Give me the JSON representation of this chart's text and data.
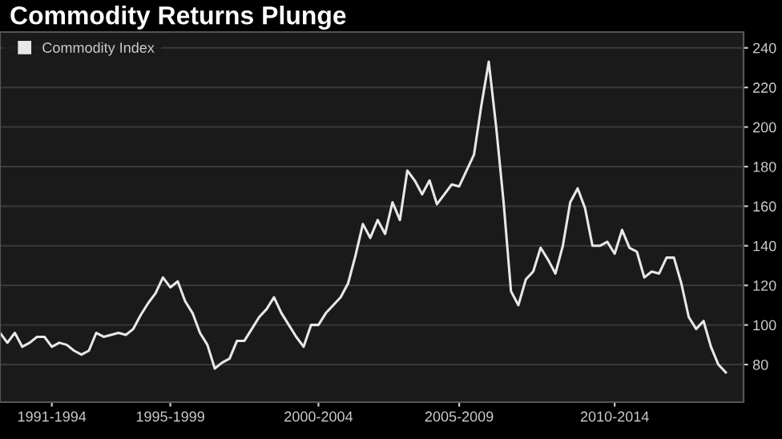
{
  "chart_data": {
    "type": "line",
    "title": "Commodity Returns Plunge",
    "categories": [
      null,
      null,
      null,
      null,
      null,
      null,
      null,
      "1991-1994",
      null,
      null,
      null,
      null,
      null,
      null,
      null,
      null,
      null,
      null,
      null,
      null,
      null,
      null,
      null,
      "1995-1999",
      null,
      null,
      null,
      null,
      null,
      null,
      null,
      null,
      null,
      null,
      null,
      null,
      null,
      null,
      null,
      null,
      null,
      null,
      null,
      "2000-2004",
      null,
      null,
      null,
      null,
      null,
      null,
      null,
      null,
      null,
      null,
      null,
      null,
      null,
      null,
      null,
      null,
      null,
      null,
      "2005-2009",
      null,
      null,
      null,
      null,
      null,
      null,
      null,
      null,
      null,
      null,
      null,
      null,
      null,
      null,
      null,
      null,
      null,
      null,
      null,
      null,
      "2010-2014",
      null,
      null,
      null,
      null,
      null,
      null,
      null,
      null,
      null,
      null,
      null,
      null,
      null,
      null,
      null
    ],
    "ylim": [
      61,
      248
    ],
    "yticks": [
      80,
      100,
      120,
      140,
      160,
      180,
      200,
      220,
      240
    ],
    "grid": "y",
    "legend": "top left",
    "marker": "none",
    "line_style": "solid",
    "series": [
      {
        "name": "Commodity Index",
        "color": "#e8e8e8",
        "values": [
          96,
          91,
          96,
          89,
          91,
          94,
          94,
          89,
          91,
          90,
          87,
          85,
          87,
          96,
          94,
          95,
          96,
          95,
          98,
          105,
          111,
          116,
          124,
          119,
          122,
          112,
          106,
          96,
          90,
          78,
          81,
          83,
          92,
          92,
          98,
          104,
          108,
          114,
          106,
          100,
          94,
          89,
          100,
          100,
          106,
          110,
          114,
          121,
          135,
          151,
          144,
          153,
          146,
          162,
          153,
          178,
          173,
          166,
          173,
          161,
          166,
          171,
          170,
          178,
          186,
          211,
          233,
          200,
          162,
          117,
          110,
          123,
          127,
          139,
          133,
          126,
          140,
          162,
          169,
          159,
          140,
          140,
          142,
          136,
          148,
          139,
          137,
          124,
          127,
          126,
          134,
          134,
          121,
          104,
          98,
          102,
          89,
          80,
          76
        ]
      }
    ]
  }
}
